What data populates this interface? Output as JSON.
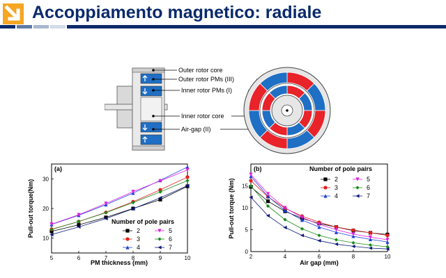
{
  "slide": {
    "title": "Accoppiamento magnetico: radiale",
    "accent_color": "#f5a623",
    "title_color": "#0a2a6b"
  },
  "schematic": {
    "labels": [
      "Outer rotor core",
      "Outer rotor PMs (III)",
      "Inner rotor PMs (I)",
      "Inner rotor core",
      "Air-gap (II)"
    ],
    "magnet_colors": {
      "north": "#e8232a",
      "south": "#1f6fc4"
    }
  },
  "chart_data": [
    {
      "type": "line",
      "panel_label": "(a)",
      "xlabel": "PM thickness (mm)",
      "ylabel": "Pull-out torque(Nm)",
      "x": [
        5,
        6,
        7,
        8,
        9,
        10
      ],
      "xlim": [
        5,
        10
      ],
      "ylim": [
        5,
        35
      ],
      "xticks": [
        "5",
        "6",
        "7",
        "8",
        "9",
        "10"
      ],
      "yticks": [
        "10",
        "20",
        "30"
      ],
      "yticks_values": [
        10,
        20,
        30
      ],
      "legend": {
        "title": "Number of pole pairs",
        "placement": "center-right"
      },
      "series": [
        {
          "name": "2",
          "color": "#000000",
          "marker": "square",
          "values": [
            12.3,
            14.5,
            17.0,
            20.0,
            23.0,
            27.5
          ]
        },
        {
          "name": "3",
          "color": "#e02020",
          "marker": "circle",
          "values": [
            13.0,
            15.6,
            18.7,
            22.3,
            26.3,
            30.6
          ]
        },
        {
          "name": "4",
          "color": "#1f3fd6",
          "marker": "triangle",
          "values": [
            14.6,
            17.7,
            21.3,
            25.2,
            29.5,
            34.0
          ]
        },
        {
          "name": "5",
          "color": "#e020e0",
          "marker": "tri-down",
          "values": [
            14.7,
            17.9,
            21.7,
            25.7,
            29.3,
            33.0
          ]
        },
        {
          "name": "6",
          "color": "#1a8a1a",
          "marker": "diamond",
          "values": [
            12.9,
            15.6,
            18.6,
            22.0,
            25.6,
            29.4
          ]
        },
        {
          "name": "7",
          "color": "#0d1a7a",
          "marker": "tri-left",
          "values": [
            11.2,
            13.8,
            16.6,
            19.9,
            23.6,
            27.7
          ]
        }
      ]
    },
    {
      "type": "line",
      "panel_label": "(b)",
      "xlabel": "Air gap (mm)",
      "ylabel": "Pull-out torque (Nm)",
      "x": [
        2,
        3,
        4,
        5,
        6,
        7,
        8,
        9,
        10
      ],
      "xlim": [
        2,
        10
      ],
      "ylim": [
        0,
        20
      ],
      "xticks": [
        "2",
        "4",
        "6",
        "8",
        "10"
      ],
      "xticks_values": [
        2,
        4,
        6,
        8,
        10
      ],
      "yticks": [
        "0",
        "5",
        "10",
        "15"
      ],
      "yticks_values": [
        0,
        5,
        10,
        15
      ],
      "legend": {
        "title": "Number of pole pairs",
        "placement": "top-right"
      },
      "series": [
        {
          "name": "2",
          "color": "#000000",
          "marker": "square",
          "values": [
            14.8,
            11.5,
            9.2,
            7.6,
            6.4,
            5.6,
            4.8,
            4.3,
            3.9
          ]
        },
        {
          "name": "3",
          "color": "#e02020",
          "marker": "circle",
          "values": [
            16.2,
            12.5,
            9.9,
            8.1,
            6.7,
            5.6,
            4.9,
            4.3,
            3.7
          ]
        },
        {
          "name": "4",
          "color": "#1f3fd6",
          "marker": "triangle",
          "values": [
            17.2,
            12.6,
            9.4,
            7.2,
            5.6,
            4.4,
            3.5,
            2.8,
            2.2
          ]
        },
        {
          "name": "5",
          "color": "#e020e0",
          "marker": "tri-down",
          "values": [
            17.6,
            13.2,
            10.0,
            7.8,
            6.2,
            5.0,
            4.0,
            3.3,
            2.7
          ]
        },
        {
          "name": "6",
          "color": "#1a8a1a",
          "marker": "diamond",
          "values": [
            15.0,
            10.4,
            7.3,
            5.2,
            3.7,
            2.7,
            2.0,
            1.5,
            1.1
          ]
        },
        {
          "name": "7",
          "color": "#0d1a7a",
          "marker": "tri-left",
          "values": [
            12.4,
            8.2,
            5.5,
            3.7,
            2.5,
            1.7,
            1.2,
            0.8,
            0.6
          ]
        }
      ]
    }
  ]
}
